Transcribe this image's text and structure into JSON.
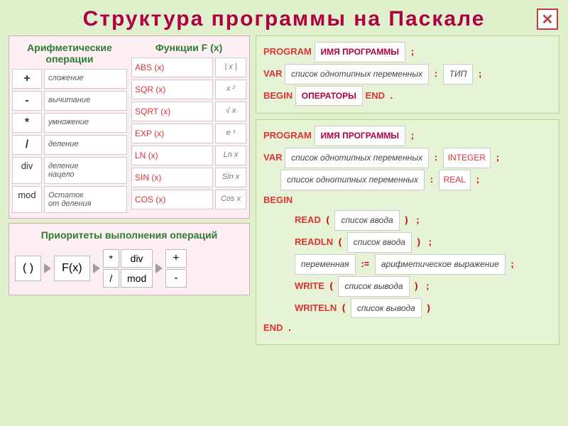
{
  "title": "Структура  программы  на  Паскале",
  "close_icon": "✕",
  "colors": {
    "bg": "#dff0cc",
    "title": "#b00040",
    "panel_pink": "#fdeef4",
    "panel_green": "#e6f3d6",
    "keyword": "#d33",
    "heading_green": "#2e7d32"
  },
  "arith": {
    "heading": "Арифметические\nоперации",
    "rows": [
      {
        "sym": "+",
        "desc": "сложение"
      },
      {
        "sym": "-",
        "desc": "вычитание"
      },
      {
        "sym": "*",
        "desc": "умножение"
      },
      {
        "sym": "/",
        "desc": "деление"
      },
      {
        "sym": "div",
        "desc": "деление\nнацело"
      },
      {
        "sym": "mod",
        "desc": "Остаток\nот деления"
      }
    ]
  },
  "funcs": {
    "heading": "Функции  F (x)",
    "rows": [
      {
        "name": "ABS (x)",
        "math": "| x |"
      },
      {
        "name": "SQR (x)",
        "math": "x ²"
      },
      {
        "name": "SQRT (x)",
        "math": "√ x"
      },
      {
        "name": "EXP (x)",
        "math": "e ˣ"
      },
      {
        "name": "LN (x)",
        "math": "Ln x"
      },
      {
        "name": "SIN (x)",
        "math": "Sin x"
      },
      {
        "name": "COS (x)",
        "math": "Cos x"
      }
    ]
  },
  "priority": {
    "heading": "Приоритеты выполнения операций",
    "items": {
      "paren": "( )",
      "fx": "F(x)",
      "grid": [
        "*",
        "div",
        "/",
        "mod"
      ],
      "col": [
        "+",
        "-"
      ]
    }
  },
  "prog1": {
    "program_kw": "PROGRAM",
    "program_name": "ИМЯ ПРОГРАММЫ",
    "var_kw": "VAR",
    "var_list": "список однотипных переменных",
    "type_label": "ТИП",
    "begin_kw": "BEGIN",
    "operators": "ОПЕРАТОРЫ",
    "end_kw": "END",
    "semi": ";",
    "colon": ":",
    "dot": "."
  },
  "prog2": {
    "program_kw": "PROGRAM",
    "program_name": "ИМЯ ПРОГРАММЫ",
    "var_kw": "VAR",
    "var_list": "список однотипных переменных",
    "type1": "INTEGER",
    "type2": "REAL",
    "begin_kw": "BEGIN",
    "read_kw": "READ",
    "readln_kw": "READLN",
    "input_list": "список ввода",
    "assign_var": "переменная",
    "assign_op": ":=",
    "assign_expr": "арифметическое выражение",
    "write_kw": "WRITE",
    "writeln_kw": "WRITELN",
    "output_list": "список вывода",
    "end_kw": "END",
    "semi": ";",
    "colon": ":",
    "dot": ".",
    "lparen": "(",
    "rparen": ")"
  }
}
